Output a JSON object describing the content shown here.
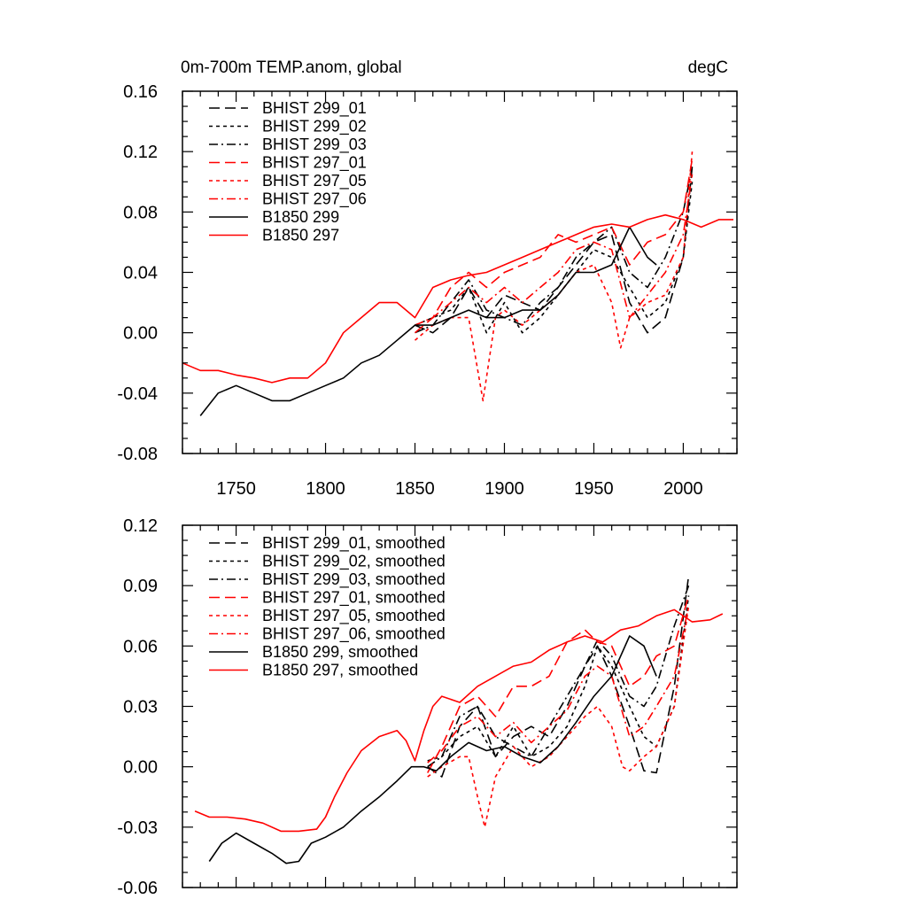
{
  "chart_data": [
    {
      "type": "line",
      "title": "0m-700m TEMP.anom, global",
      "units": "degC",
      "xlabel": "",
      "ylabel": "",
      "xlim": [
        1720,
        2030
      ],
      "ylim": [
        -0.08,
        0.16
      ],
      "xticks": [
        1750,
        1800,
        1850,
        1900,
        1950,
        2000
      ],
      "xtick_labels": [
        "1750",
        "1800",
        "1850",
        "1900",
        "1950",
        "2000"
      ],
      "yticks": [
        -0.08,
        -0.04,
        0.0,
        0.04,
        0.08,
        0.12,
        0.16
      ],
      "ytick_labels": [
        "-0.08",
        "-0.04",
        "0.00",
        "0.04",
        "0.08",
        "0.12",
        "0.16"
      ],
      "legend_position": "top-left",
      "series": [
        {
          "name": "BHIST 299_01",
          "color": "#000000",
          "style": "dash",
          "x": [
            1850,
            1860,
            1870,
            1880,
            1890,
            1900,
            1910,
            1920,
            1930,
            1940,
            1950,
            1960,
            1970,
            1980,
            1990,
            2000,
            2005
          ],
          "y": [
            0.005,
            0.0,
            0.01,
            0.03,
            0.01,
            0.025,
            0.02,
            0.015,
            0.03,
            0.045,
            0.06,
            0.065,
            0.02,
            0.0,
            0.01,
            0.05,
            0.11
          ]
        },
        {
          "name": "BHIST 299_02",
          "color": "#000000",
          "style": "dot",
          "x": [
            1850,
            1860,
            1870,
            1880,
            1890,
            1900,
            1910,
            1920,
            1930,
            1940,
            1950,
            1960,
            1970,
            1980,
            1990,
            2000,
            2005
          ],
          "y": [
            0.005,
            0.01,
            0.015,
            0.03,
            0.0,
            0.02,
            0.0,
            0.01,
            0.025,
            0.04,
            0.055,
            0.05,
            0.03,
            0.01,
            0.02,
            0.05,
            0.1
          ]
        },
        {
          "name": "BHIST 299_03",
          "color": "#000000",
          "style": "dashdot",
          "x": [
            1850,
            1860,
            1870,
            1880,
            1890,
            1900,
            1910,
            1920,
            1930,
            1940,
            1950,
            1960,
            1970,
            1980,
            1990,
            2000,
            2005
          ],
          "y": [
            0.0,
            0.005,
            0.02,
            0.035,
            0.015,
            0.01,
            0.005,
            0.02,
            0.03,
            0.05,
            0.06,
            0.07,
            0.04,
            0.03,
            0.05,
            0.08,
            0.11
          ]
        },
        {
          "name": "BHIST 297_01",
          "color": "#ff0000",
          "style": "dash",
          "x": [
            1850,
            1860,
            1870,
            1880,
            1890,
            1900,
            1910,
            1920,
            1930,
            1940,
            1950,
            1960,
            1970,
            1980,
            1990,
            2000,
            2005
          ],
          "y": [
            0.0,
            0.01,
            0.03,
            0.04,
            0.03,
            0.04,
            0.045,
            0.05,
            0.065,
            0.06,
            0.065,
            0.07,
            0.045,
            0.06,
            0.065,
            0.08,
            0.115
          ]
        },
        {
          "name": "BHIST 297_05",
          "color": "#ff0000",
          "style": "dot",
          "x": [
            1850,
            1860,
            1870,
            1880,
            1888,
            1895,
            1900,
            1910,
            1920,
            1930,
            1940,
            1950,
            1960,
            1965,
            1970,
            1980,
            1990,
            2000,
            2005
          ],
          "y": [
            -0.005,
            0.005,
            0.01,
            0.01,
            -0.045,
            0.01,
            0.015,
            0.005,
            0.015,
            0.025,
            0.04,
            0.045,
            0.02,
            -0.01,
            0.01,
            0.02,
            0.025,
            0.05,
            0.12
          ]
        },
        {
          "name": "BHIST 297_06",
          "color": "#ff0000",
          "style": "dashdot",
          "x": [
            1850,
            1860,
            1870,
            1880,
            1890,
            1900,
            1910,
            1920,
            1930,
            1940,
            1950,
            1960,
            1970,
            1980,
            1990,
            2000,
            2005
          ],
          "y": [
            0.005,
            0.01,
            0.02,
            0.03,
            0.02,
            0.03,
            0.02,
            0.03,
            0.04,
            0.055,
            0.06,
            0.055,
            0.01,
            0.025,
            0.04,
            0.065,
            0.105
          ]
        },
        {
          "name": "B1850 299",
          "color": "#000000",
          "style": "solid",
          "x": [
            1730,
            1740,
            1750,
            1760,
            1770,
            1780,
            1790,
            1800,
            1810,
            1820,
            1830,
            1840,
            1850,
            1860,
            1870,
            1880,
            1890,
            1900,
            1910,
            1920,
            1930,
            1940,
            1950,
            1960,
            1970,
            1980,
            1985
          ],
          "y": [
            -0.055,
            -0.04,
            -0.035,
            -0.04,
            -0.045,
            -0.045,
            -0.04,
            -0.035,
            -0.03,
            -0.02,
            -0.015,
            -0.005,
            0.005,
            0.005,
            0.01,
            0.015,
            0.01,
            0.01,
            0.015,
            0.015,
            0.025,
            0.04,
            0.04,
            0.045,
            0.07,
            0.05,
            0.045
          ]
        },
        {
          "name": "B1850 297",
          "color": "#ff0000",
          "style": "solid",
          "x": [
            1720,
            1730,
            1740,
            1750,
            1760,
            1770,
            1780,
            1790,
            1800,
            1810,
            1820,
            1830,
            1840,
            1850,
            1860,
            1870,
            1880,
            1890,
            1900,
            1910,
            1920,
            1930,
            1940,
            1950,
            1960,
            1970,
            1980,
            1990,
            2000,
            2010,
            2020,
            2028
          ],
          "y": [
            -0.02,
            -0.025,
            -0.025,
            -0.028,
            -0.03,
            -0.033,
            -0.03,
            -0.03,
            -0.02,
            0.0,
            0.01,
            0.02,
            0.02,
            0.01,
            0.03,
            0.035,
            0.038,
            0.04,
            0.045,
            0.05,
            0.055,
            0.06,
            0.065,
            0.07,
            0.072,
            0.07,
            0.075,
            0.078,
            0.075,
            0.07,
            0.075,
            0.075
          ]
        }
      ]
    },
    {
      "type": "line",
      "title": "",
      "units": "",
      "xlabel": "",
      "ylabel": "",
      "xlim": [
        1720,
        2030
      ],
      "ylim": [
        -0.06,
        0.12
      ],
      "xticks": [
        1750,
        1800,
        1850,
        1900,
        1950,
        2000
      ],
      "xtick_labels": [],
      "yticks": [
        -0.06,
        -0.03,
        0.0,
        0.03,
        0.06,
        0.09,
        0.12
      ],
      "ytick_labels": [
        "-0.06",
        "-0.03",
        "0.00",
        "0.03",
        "0.06",
        "0.09",
        "0.12"
      ],
      "legend_position": "top-left",
      "series": [
        {
          "name": "BHIST 299_01, smoothed",
          "color": "#000000",
          "style": "dash",
          "x": [
            1857,
            1865,
            1875,
            1885,
            1895,
            1905,
            1915,
            1925,
            1935,
            1945,
            1952,
            1960,
            1970,
            1978,
            1985,
            1995,
            2003
          ],
          "y": [
            0.0,
            -0.005,
            0.02,
            0.03,
            0.005,
            0.015,
            0.02,
            0.015,
            0.03,
            0.05,
            0.06,
            0.045,
            0.02,
            -0.002,
            -0.003,
            0.04,
            0.095
          ]
        },
        {
          "name": "BHIST 299_02, smoothed",
          "color": "#000000",
          "style": "dot",
          "x": [
            1857,
            1865,
            1875,
            1885,
            1895,
            1905,
            1915,
            1925,
            1935,
            1945,
            1952,
            1960,
            1970,
            1978,
            1985,
            1995,
            2003
          ],
          "y": [
            0.003,
            0.005,
            0.015,
            0.02,
            0.005,
            0.02,
            0.005,
            0.01,
            0.02,
            0.04,
            0.06,
            0.05,
            0.03,
            0.015,
            0.01,
            0.03,
            0.085
          ]
        },
        {
          "name": "BHIST 299_03, smoothed",
          "color": "#000000",
          "style": "dashdot",
          "x": [
            1857,
            1865,
            1875,
            1885,
            1895,
            1905,
            1915,
            1925,
            1935,
            1945,
            1952,
            1960,
            1970,
            1978,
            1985,
            1995,
            2003
          ],
          "y": [
            0.0,
            0.005,
            0.025,
            0.03,
            0.015,
            0.01,
            0.005,
            0.02,
            0.035,
            0.05,
            0.063,
            0.055,
            0.035,
            0.03,
            0.04,
            0.07,
            0.09
          ]
        },
        {
          "name": "BHIST 297_01, smoothed",
          "color": "#ff0000",
          "style": "dash",
          "x": [
            1857,
            1865,
            1875,
            1885,
            1895,
            1905,
            1915,
            1925,
            1935,
            1945,
            1952,
            1960,
            1970,
            1978,
            1985,
            1995,
            2003
          ],
          "y": [
            -0.003,
            0.01,
            0.03,
            0.035,
            0.025,
            0.04,
            0.04,
            0.045,
            0.062,
            0.068,
            0.062,
            0.06,
            0.04,
            0.045,
            0.055,
            0.06,
            0.085
          ]
        },
        {
          "name": "BHIST 297_05, smoothed",
          "color": "#ff0000",
          "style": "dot",
          "x": [
            1857,
            1865,
            1875,
            1880,
            1885,
            1889,
            1895,
            1905,
            1915,
            1925,
            1935,
            1945,
            1952,
            1960,
            1966,
            1970,
            1978,
            1985,
            1995,
            2003
          ],
          "y": [
            -0.005,
            0.0,
            0.005,
            0.005,
            -0.015,
            -0.03,
            -0.005,
            0.01,
            0.0,
            0.005,
            0.015,
            0.025,
            0.03,
            0.02,
            0.0,
            -0.002,
            0.005,
            0.01,
            0.03,
            0.08
          ]
        },
        {
          "name": "BHIST 297_06, smoothed",
          "color": "#ff0000",
          "style": "dashdot",
          "x": [
            1857,
            1865,
            1875,
            1885,
            1895,
            1905,
            1915,
            1925,
            1935,
            1945,
            1952,
            1960,
            1970,
            1978,
            1985,
            1995,
            2003
          ],
          "y": [
            0.002,
            0.008,
            0.02,
            0.025,
            0.015,
            0.022,
            0.012,
            0.02,
            0.028,
            0.045,
            0.05,
            0.045,
            0.015,
            0.02,
            0.03,
            0.045,
            0.08
          ]
        },
        {
          "name": "B1850 299, smoothed",
          "color": "#000000",
          "style": "solid",
          "x": [
            1735,
            1742,
            1750,
            1760,
            1770,
            1778,
            1785,
            1792,
            1800,
            1810,
            1820,
            1830,
            1840,
            1848,
            1855,
            1862,
            1870,
            1880,
            1890,
            1900,
            1910,
            1920,
            1930,
            1940,
            1950,
            1960,
            1970,
            1978,
            1985
          ],
          "y": [
            -0.047,
            -0.038,
            -0.033,
            -0.038,
            -0.043,
            -0.048,
            -0.047,
            -0.038,
            -0.035,
            -0.03,
            -0.022,
            -0.015,
            -0.007,
            0.0,
            0.0,
            -0.002,
            0.005,
            0.012,
            0.008,
            0.01,
            0.005,
            0.002,
            0.01,
            0.022,
            0.035,
            0.045,
            0.065,
            0.06,
            0.045
          ]
        },
        {
          "name": "B1850 297, smoothed",
          "color": "#ff0000",
          "style": "solid",
          "x": [
            1727,
            1735,
            1745,
            1755,
            1765,
            1775,
            1785,
            1795,
            1800,
            1805,
            1812,
            1820,
            1830,
            1840,
            1845,
            1850,
            1855,
            1860,
            1865,
            1875,
            1885,
            1895,
            1905,
            1915,
            1925,
            1935,
            1945,
            1955,
            1965,
            1975,
            1985,
            1995,
            2005,
            2015,
            2022
          ],
          "y": [
            -0.022,
            -0.025,
            -0.025,
            -0.026,
            -0.028,
            -0.032,
            -0.032,
            -0.031,
            -0.025,
            -0.015,
            -0.003,
            0.008,
            0.015,
            0.018,
            0.013,
            0.003,
            0.018,
            0.03,
            0.035,
            0.032,
            0.04,
            0.045,
            0.05,
            0.052,
            0.058,
            0.062,
            0.065,
            0.062,
            0.068,
            0.07,
            0.075,
            0.078,
            0.072,
            0.073,
            0.076
          ]
        }
      ]
    }
  ]
}
